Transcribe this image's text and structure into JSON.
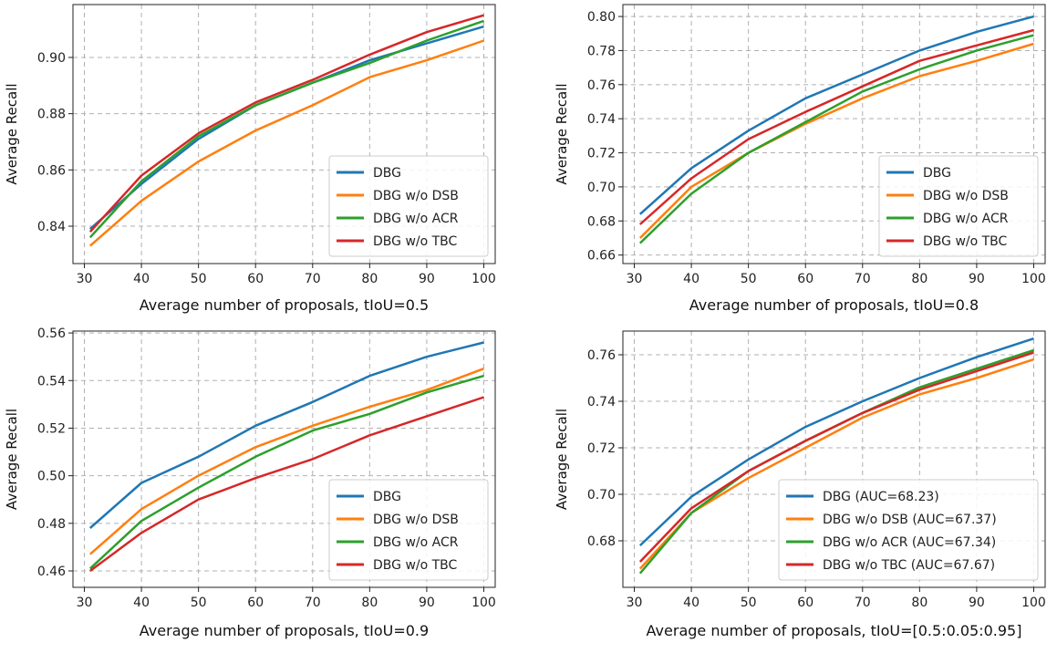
{
  "chart_data": [
    {
      "type": "line",
      "title": "",
      "xlabel": "Average number of proposals, tIoU=0.5",
      "ylabel": "Average Recall",
      "x": [
        31,
        40,
        50,
        60,
        70,
        80,
        90,
        100
      ],
      "xlim": [
        28,
        102
      ],
      "xticks": [
        30,
        40,
        50,
        60,
        70,
        80,
        90,
        100
      ],
      "ylim": [
        0.8267,
        0.9188
      ],
      "yticks": [
        0.84,
        0.86,
        0.88,
        0.9
      ],
      "legend": "lower-right",
      "grid": true,
      "series": [
        {
          "name": "DBG",
          "color": "#1f77b4",
          "values": [
            0.839,
            0.855,
            0.871,
            0.883,
            0.891,
            0.899,
            0.905,
            0.911
          ]
        },
        {
          "name": "DBG w/o DSB",
          "color": "#ff7f0e",
          "values": [
            0.833,
            0.849,
            0.863,
            0.874,
            0.883,
            0.893,
            0.899,
            0.906
          ]
        },
        {
          "name": "DBG w/o ACR",
          "color": "#2ca02c",
          "values": [
            0.836,
            0.856,
            0.872,
            0.883,
            0.891,
            0.898,
            0.906,
            0.913
          ]
        },
        {
          "name": "DBG w/o TBC",
          "color": "#d62728",
          "values": [
            0.838,
            0.858,
            0.873,
            0.884,
            0.892,
            0.901,
            0.909,
            0.915
          ]
        }
      ]
    },
    {
      "type": "line",
      "title": "",
      "xlabel": "Average number of proposals, tIoU=0.8",
      "ylabel": "Average Recall",
      "x": [
        31,
        40,
        50,
        60,
        70,
        80,
        90,
        100
      ],
      "xlim": [
        28,
        102
      ],
      "xticks": [
        30,
        40,
        50,
        60,
        70,
        80,
        90,
        100
      ],
      "ylim": [
        0.655,
        0.807
      ],
      "yticks": [
        0.66,
        0.68,
        0.7,
        0.72,
        0.74,
        0.76,
        0.78,
        0.8
      ],
      "legend": "lower-right",
      "grid": true,
      "series": [
        {
          "name": "DBG",
          "color": "#1f77b4",
          "values": [
            0.684,
            0.711,
            0.733,
            0.752,
            0.766,
            0.78,
            0.791,
            0.8
          ]
        },
        {
          "name": "DBG w/o DSB",
          "color": "#ff7f0e",
          "values": [
            0.67,
            0.7,
            0.72,
            0.737,
            0.752,
            0.765,
            0.774,
            0.784
          ]
        },
        {
          "name": "DBG w/o ACR",
          "color": "#2ca02c",
          "values": [
            0.667,
            0.696,
            0.72,
            0.738,
            0.756,
            0.769,
            0.78,
            0.789
          ]
        },
        {
          "name": "DBG w/o TBC",
          "color": "#d62728",
          "values": [
            0.678,
            0.705,
            0.728,
            0.744,
            0.759,
            0.774,
            0.783,
            0.792
          ]
        }
      ]
    },
    {
      "type": "line",
      "title": "",
      "xlabel": "Average number of proposals, tIoU=0.9",
      "ylabel": "Average Recall",
      "x": [
        31,
        40,
        50,
        60,
        70,
        80,
        90,
        100
      ],
      "xlim": [
        28,
        102
      ],
      "xticks": [
        30,
        40,
        50,
        60,
        70,
        80,
        90,
        100
      ],
      "ylim": [
        0.4531,
        0.5608
      ],
      "yticks": [
        0.46,
        0.48,
        0.5,
        0.52,
        0.54,
        0.56
      ],
      "legend": "lower-right",
      "grid": true,
      "series": [
        {
          "name": "DBG",
          "color": "#1f77b4",
          "values": [
            0.478,
            0.497,
            0.508,
            0.521,
            0.531,
            0.542,
            0.55,
            0.556
          ]
        },
        {
          "name": "DBG w/o DSB",
          "color": "#ff7f0e",
          "values": [
            0.467,
            0.486,
            0.5,
            0.512,
            0.521,
            0.529,
            0.536,
            0.545
          ]
        },
        {
          "name": "DBG w/o ACR",
          "color": "#2ca02c",
          "values": [
            0.461,
            0.481,
            0.495,
            0.508,
            0.519,
            0.526,
            0.535,
            0.542
          ]
        },
        {
          "name": "DBG w/o TBC",
          "color": "#d62728",
          "values": [
            0.46,
            0.476,
            0.49,
            0.499,
            0.507,
            0.517,
            0.525,
            0.533
          ]
        }
      ]
    },
    {
      "type": "line",
      "title": "",
      "xlabel": "Average number of proposals, tIoU=[0.5:0.05:0.95]",
      "ylabel": "Average Recall",
      "x": [
        31,
        40,
        50,
        60,
        70,
        80,
        90,
        100
      ],
      "xlim": [
        28,
        102
      ],
      "xticks": [
        30,
        40,
        50,
        60,
        70,
        80,
        90,
        100
      ],
      "ylim": [
        0.66,
        0.7702
      ],
      "yticks": [
        0.68,
        0.7,
        0.72,
        0.74,
        0.76
      ],
      "legend": "lower-right",
      "grid": true,
      "series": [
        {
          "name": "DBG (AUC=68.23)",
          "color": "#1f77b4",
          "values": [
            0.678,
            0.699,
            0.715,
            0.729,
            0.74,
            0.75,
            0.759,
            0.767
          ]
        },
        {
          "name": "DBG w/o DSB (AUC=67.37)",
          "color": "#ff7f0e",
          "values": [
            0.668,
            0.692,
            0.707,
            0.72,
            0.733,
            0.743,
            0.75,
            0.758
          ]
        },
        {
          "name": "DBG w/o ACR (AUC=67.34)",
          "color": "#2ca02c",
          "values": [
            0.666,
            0.692,
            0.71,
            0.723,
            0.735,
            0.746,
            0.754,
            0.762
          ]
        },
        {
          "name": "DBG w/o TBC (AUC=67.67)",
          "color": "#d62728",
          "values": [
            0.671,
            0.694,
            0.71,
            0.723,
            0.735,
            0.745,
            0.753,
            0.761
          ]
        }
      ]
    }
  ]
}
